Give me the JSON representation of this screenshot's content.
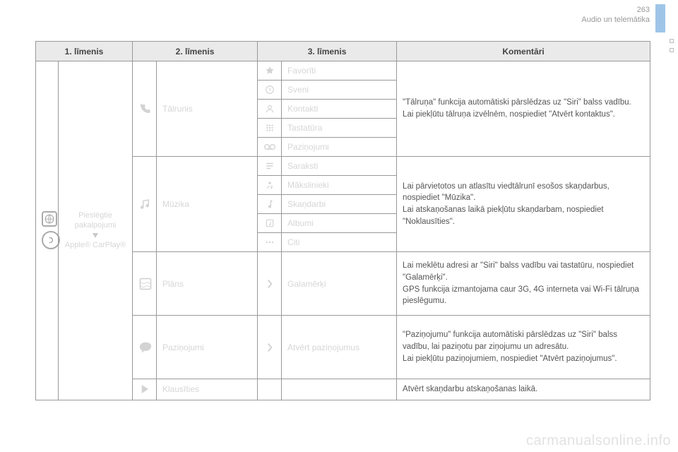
{
  "page_number": "263",
  "section_title": "Audio un telemātika",
  "watermark": "carmanualsonline.info",
  "headers": {
    "l1": "1. līmenis",
    "l2": "2. līmenis",
    "l3": "3. līmenis",
    "comments": "Komentāri"
  },
  "level1": {
    "line1": "Pieslēgtie",
    "line2": "pakalpojumi",
    "line3": "Apple® CarPlay®"
  },
  "rows": {
    "phone": {
      "label": "Tālrunis",
      "items": [
        "Favorīti",
        "Sveni",
        "Kontakti",
        "Tastatūra",
        "Paziņojumi"
      ],
      "comment": "\"Tālruņa\" funkcija automātiski pārslēdzas uz \"Siri\" balss vadību.\nLai piekļūtu tālruņa izvēlnēm, nospiediet \"Atvērt kontaktus\"."
    },
    "music": {
      "label": "Mūzika",
      "items": [
        "Saraksti",
        "Mākslinieki",
        "Skaņdarbi",
        "Albumi",
        "Citi"
      ],
      "comment": "Lai pārvietotos un atlasītu viedtālrunī esošos skaņdarbus, nospiediet \"Mūzika\".\nLai atskaņošanas laikā piekļūtu skaņdarbam, nospiediet \"Noklausīties\"."
    },
    "maps": {
      "label": "Plāns",
      "item": "Galamērķi",
      "comment": "Lai meklētu adresi ar \"Siri\" balss vadību vai tastatūru, nospiediet \"Galamērķi\".\nGPS funkcija izmantojama caur 3G, 4G interneta vai Wi-Fi tālruņa pieslēgumu."
    },
    "messages": {
      "label": "Paziņojumi",
      "item": "Atvērt paziņojumus",
      "comment": "\"Paziņojumu\" funkcija automātiski pārslēdzas uz \"Siri\" balss vadību, lai paziņotu par ziņojumu un adresātu.\nLai piekļūtu paziņojumiem, nospiediet \"Atvērt paziņojumus\"."
    },
    "listen": {
      "label": "Klausīties",
      "comment": "Atvērt skaņdarbu atskaņošanas laikā."
    }
  }
}
